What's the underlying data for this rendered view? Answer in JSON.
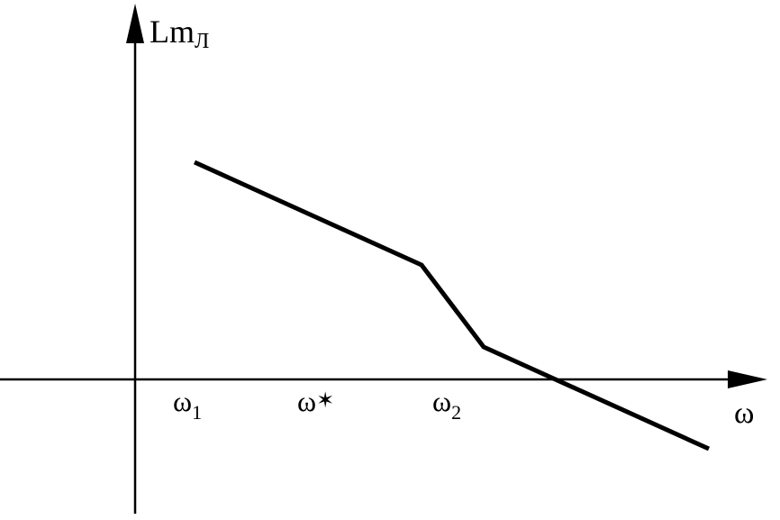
{
  "diagram": {
    "y_axis_label": "Lm",
    "y_axis_label_sub": "Л",
    "x_axis_label": "ω",
    "ticks": [
      {
        "base": "ω",
        "sub": "1"
      },
      {
        "base": "ω",
        "sup": "✶"
      },
      {
        "base": "ω",
        "sub": "2"
      }
    ],
    "colors": {
      "stroke": "#000000",
      "background": "#ffffff"
    }
  }
}
